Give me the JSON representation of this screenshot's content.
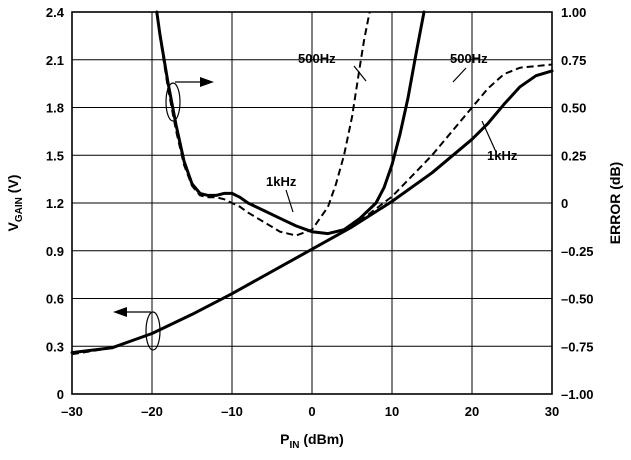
{
  "chart_data": {
    "type": "line",
    "xlabel_main": "P",
    "xlabel_sub": "IN",
    "xlabel_unit": " (dBm)",
    "ylabel_left_main": "V",
    "ylabel_left_sub": "GAIN",
    "ylabel_left_unit": " (V)",
    "ylabel_right": "ERROR (dB)",
    "xlim": [
      -30,
      30
    ],
    "ylim_left": [
      0,
      2.4
    ],
    "ylim_right": [
      -1.0,
      1.0
    ],
    "grid": true,
    "x_ticks": [
      "–30",
      "–20",
      "–10",
      "0",
      "10",
      "20",
      "30"
    ],
    "y_left_ticks": [
      "0",
      "0.3",
      "0.6",
      "0.9",
      "1.2",
      "1.5",
      "1.8",
      "2.1",
      "2.4"
    ],
    "y_right_ticks": [
      "–1.00",
      "–0.75",
      "–0.50",
      "–0.25",
      "0",
      "0.25",
      "0.50",
      "0.75",
      "1.00"
    ],
    "annotations": [
      "500Hz",
      "500Hz",
      "1kHz",
      "1kHz"
    ],
    "series": [
      {
        "axis": "left",
        "style": "solid",
        "x": [
          -30,
          -25,
          -20,
          -15,
          -10,
          -5,
          0,
          5,
          10,
          15,
          20,
          22,
          24,
          26,
          28,
          30
        ],
        "y": [
          0.26,
          0.29,
          0.38,
          0.5,
          0.63,
          0.77,
          0.91,
          1.05,
          1.21,
          1.39,
          1.6,
          1.7,
          1.82,
          1.93,
          2.0,
          2.03
        ]
      },
      {
        "axis": "left",
        "style": "dashed",
        "x": [
          -30,
          -25,
          -20,
          -15,
          -10,
          -5,
          0,
          5,
          10,
          15,
          18,
          20,
          22,
          24,
          26,
          28,
          30
        ],
        "y": [
          0.25,
          0.29,
          0.38,
          0.5,
          0.63,
          0.77,
          0.91,
          1.05,
          1.24,
          1.5,
          1.68,
          1.8,
          1.92,
          2.01,
          2.05,
          2.06,
          2.07
        ]
      },
      {
        "axis": "right",
        "style": "solid",
        "x": [
          -19.4,
          -19,
          -18,
          -17,
          -16,
          -15,
          -14,
          -13,
          -12,
          -11,
          -10,
          -9,
          -8,
          -6,
          -4,
          -2,
          0,
          2,
          4,
          6,
          8,
          9,
          10,
          11,
          12,
          13,
          14
        ],
        "y": [
          1.0,
          0.88,
          0.63,
          0.41,
          0.22,
          0.1,
          0.05,
          0.04,
          0.04,
          0.05,
          0.05,
          0.03,
          0.0,
          -0.04,
          -0.08,
          -0.12,
          -0.15,
          -0.16,
          -0.14,
          -0.08,
          0.0,
          0.08,
          0.2,
          0.36,
          0.55,
          0.78,
          1.0
        ]
      },
      {
        "axis": "right",
        "style": "dashed",
        "x": [
          -19.4,
          -19,
          -18,
          -17,
          -16,
          -15,
          -14,
          -13,
          -12,
          -11,
          -10,
          -9,
          -8,
          -6,
          -4,
          -2,
          0,
          2,
          3,
          4,
          5,
          6,
          6.5,
          7.2
        ],
        "y": [
          1.0,
          0.87,
          0.6,
          0.38,
          0.2,
          0.09,
          0.04,
          0.03,
          0.03,
          0.02,
          0.0,
          -0.02,
          -0.05,
          -0.1,
          -0.15,
          -0.17,
          -0.14,
          -0.02,
          0.1,
          0.25,
          0.45,
          0.72,
          0.85,
          1.0
        ]
      }
    ]
  }
}
